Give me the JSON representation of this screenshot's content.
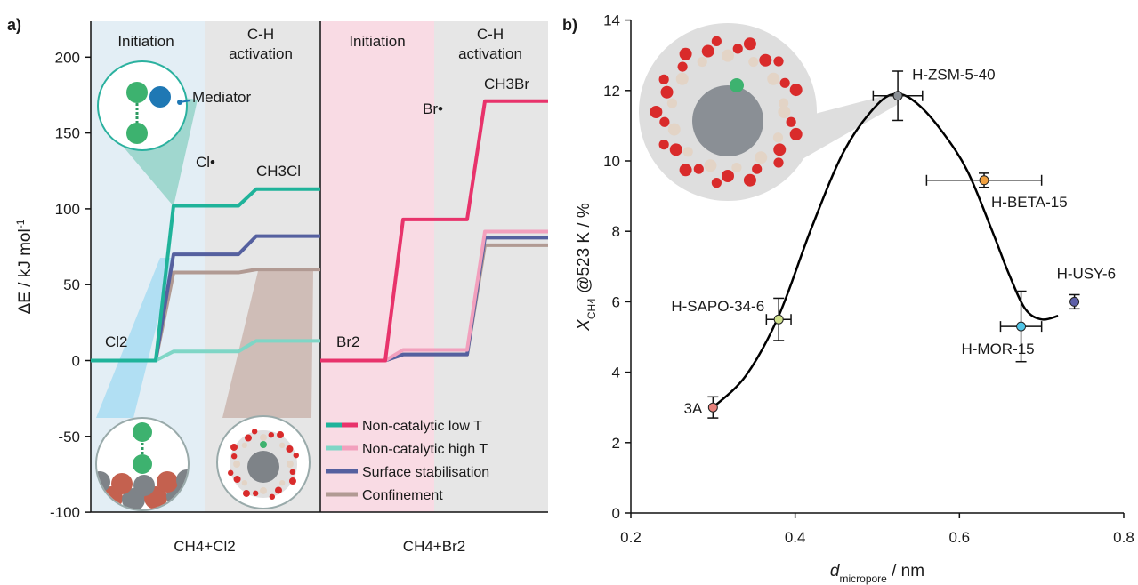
{
  "panel_a": {
    "label": "a)",
    "ylabel_main": "ΔE / kJ mol",
    "ylabel_sup": "-1",
    "phase_initiation": "Initiation",
    "phase_ch_line1": "C-H",
    "phase_ch_line2": "activation",
    "mediator_label": "Mediator",
    "xlabel_cl": "CH4+Cl2",
    "xlabel_br": "CH4+Br2",
    "annotations": {
      "cl2": "Cl2",
      "cl_rad": "Cl•",
      "ch3cl": "CH3Cl",
      "br2": "Br2",
      "br_rad": "Br•",
      "ch3br": "CH3Br"
    },
    "legend": [
      "Non-catalytic low T",
      "Non-catalytic high T",
      "Surface stabilisation",
      "Confinement"
    ],
    "colors": {
      "cl_low": "#1fb39a",
      "cl_high": "#7fd6c6",
      "br_low": "#e8336b",
      "br_high": "#f2a0bd",
      "surface": "#55609f",
      "confinement": "#b19a93"
    }
  },
  "panel_b": {
    "label": "b)",
    "ylabel": "X_CH4 @523 K / %",
    "xlabel": "d_micropore / nm",
    "curve_color": "#000000"
  },
  "chart_data": [
    {
      "type": "line",
      "panel": "a-left",
      "ylim": [
        -100,
        220
      ],
      "yticks": [
        -100,
        -50,
        0,
        50,
        100,
        150,
        200
      ],
      "series": [
        {
          "name": "Non-catalytic low T",
          "y": [
            0,
            102,
            102,
            113
          ]
        },
        {
          "name": "Non-catalytic high T",
          "y": [
            0,
            6,
            6,
            13
          ]
        },
        {
          "name": "Surface stabilisation",
          "y": [
            0,
            70,
            70,
            82
          ]
        },
        {
          "name": "Confinement",
          "y": [
            0,
            58,
            58,
            60
          ]
        }
      ]
    },
    {
      "type": "line",
      "panel": "a-right",
      "ylim": [
        -100,
        220
      ],
      "series": [
        {
          "name": "Non-catalytic low T",
          "y": [
            0,
            93,
            93,
            171
          ]
        },
        {
          "name": "Non-catalytic high T",
          "y": [
            0,
            7,
            7,
            85
          ]
        },
        {
          "name": "Surface stabilisation",
          "y": [
            0,
            4,
            4,
            81
          ]
        },
        {
          "name": "Confinement",
          "y": [
            0,
            4,
            4,
            76
          ]
        }
      ]
    },
    {
      "type": "scatter",
      "panel": "b",
      "xlim": [
        0.2,
        0.8
      ],
      "ylim": [
        0,
        14
      ],
      "xticks": [
        0.2,
        0.4,
        0.6,
        0.8
      ],
      "yticks": [
        0,
        2,
        4,
        6,
        8,
        10,
        12,
        14
      ],
      "points": [
        {
          "label": "3A",
          "x": 0.3,
          "y": 3.0,
          "xerr": 0,
          "yerr": 0.3,
          "color": "#e8817b"
        },
        {
          "label": "H-SAPO-34-6",
          "x": 0.38,
          "y": 5.5,
          "xerr": 0.015,
          "yerr": 0.6,
          "color": "#cfe08a"
        },
        {
          "label": "H-ZSM-5-40",
          "x": 0.525,
          "y": 11.85,
          "xerr": 0.03,
          "yerr": 0.7,
          "color": "#8a8f95"
        },
        {
          "label": "H-BETA-15",
          "x": 0.63,
          "y": 9.45,
          "xerr": 0.07,
          "yerr": 0.2,
          "color": "#f0a040"
        },
        {
          "label": "H-MOR-15",
          "x": 0.675,
          "y": 5.3,
          "xerr": 0.025,
          "yerr": 1.0,
          "color": "#4fc4e6"
        },
        {
          "label": "H-USY-6",
          "x": 0.74,
          "y": 6.0,
          "xerr": 0,
          "yerr": 0.2,
          "color": "#5d5fa8"
        }
      ],
      "fit_curve": {
        "x": [
          0.3,
          0.34,
          0.38,
          0.42,
          0.46,
          0.5,
          0.525,
          0.55,
          0.58,
          0.61,
          0.64,
          0.66,
          0.68,
          0.7,
          0.72
        ],
        "y": [
          3.0,
          3.9,
          5.6,
          8.1,
          10.3,
          11.6,
          11.9,
          11.6,
          10.8,
          9.7,
          8.0,
          6.8,
          5.8,
          5.5,
          5.6
        ]
      }
    }
  ]
}
